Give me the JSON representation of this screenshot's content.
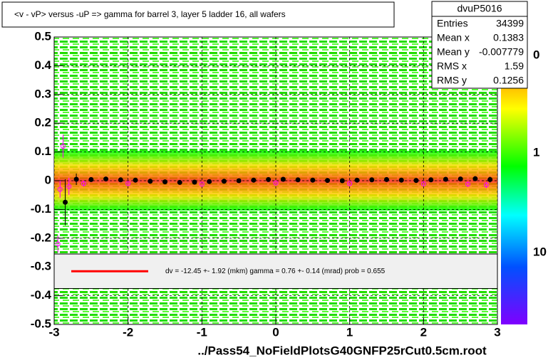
{
  "chart_data": {
    "type": "profile2d",
    "title": "<v - vP>       versus  -uP =>  gamma for barrel 3, layer 5 ladder 16, all wafers",
    "footer": "../Pass54_NoFieldPlotsG40GNFP25rCut0.5cm.root",
    "xlim": [
      -3,
      3
    ],
    "ylim": [
      -0.5,
      0.5
    ],
    "xticks": [
      -3,
      -2,
      -1,
      0,
      1,
      2,
      3
    ],
    "yticks": [
      -0.5,
      -0.4,
      -0.3,
      -0.2,
      -0.1,
      0,
      0.1,
      0.2,
      0.3,
      0.4,
      0.5
    ],
    "grid": true,
    "fit_color": "#ff0000",
    "fit_label": "dv =  -12.45 +-  1.92 (mkm) gamma =    0.76 +-  0.14 (mrad) prob = 0.655",
    "colorbar_labels": [
      "0",
      "1",
      "10"
    ],
    "series": [
      {
        "color": "#000000",
        "x": [
          -2.85,
          -2.7,
          -2.5,
          -2.3,
          -2.1,
          -1.9,
          -1.7,
          -1.5,
          -1.3,
          -1.1,
          -0.9,
          -0.7,
          -0.5,
          -0.3,
          -0.1,
          0.1,
          0.3,
          0.5,
          0.7,
          0.9,
          1.1,
          1.3,
          1.5,
          1.7,
          1.9,
          2.1,
          2.3,
          2.5,
          2.7,
          2.9
        ],
        "values": [
          -0.075,
          0.005,
          0.004,
          0.006,
          0.003,
          0.002,
          -0.002,
          -0.004,
          -0.006,
          -0.005,
          -0.003,
          -0.002,
          0.0,
          0.002,
          0.004,
          0.005,
          0.003,
          0.002,
          0.001,
          0.0,
          0.002,
          0.003,
          0.004,
          0.002,
          0.001,
          0.003,
          0.005,
          0.006,
          0.007,
          0.004
        ],
        "errors": [
          0.08,
          0.02,
          0.008,
          0.006,
          0.005,
          0.005,
          0.004,
          0.004,
          0.004,
          0.004,
          0.004,
          0.004,
          0.004,
          0.004,
          0.004,
          0.004,
          0.004,
          0.004,
          0.004,
          0.004,
          0.004,
          0.004,
          0.004,
          0.004,
          0.005,
          0.005,
          0.005,
          0.006,
          0.008,
          0.01
        ]
      },
      {
        "color": "#ff00ff",
        "x": [
          -2.95,
          -2.92,
          -2.88,
          -2.8,
          -2.6,
          -2.0,
          -1.0,
          0.0,
          1.0,
          2.0,
          2.6,
          2.85
        ],
        "values": [
          -0.22,
          -0.03,
          0.12,
          -0.02,
          -0.01,
          -0.01,
          -0.012,
          -0.008,
          -0.01,
          -0.011,
          -0.012,
          -0.015
        ],
        "errors": [
          0.03,
          0.03,
          0.04,
          0.03,
          0.01,
          0.005,
          0.004,
          0.004,
          0.004,
          0.005,
          0.008,
          0.01
        ]
      }
    ],
    "stats": {
      "name": "dvuP5016",
      "rows": [
        {
          "label": "Entries",
          "value": 34399
        },
        {
          "label": "Mean x",
          "value": 0.1383
        },
        {
          "label": "Mean y",
          "value": -0.007779
        },
        {
          "label": "RMS x",
          "value": 1.59
        },
        {
          "label": "RMS y",
          "value": 0.1256
        }
      ]
    }
  }
}
